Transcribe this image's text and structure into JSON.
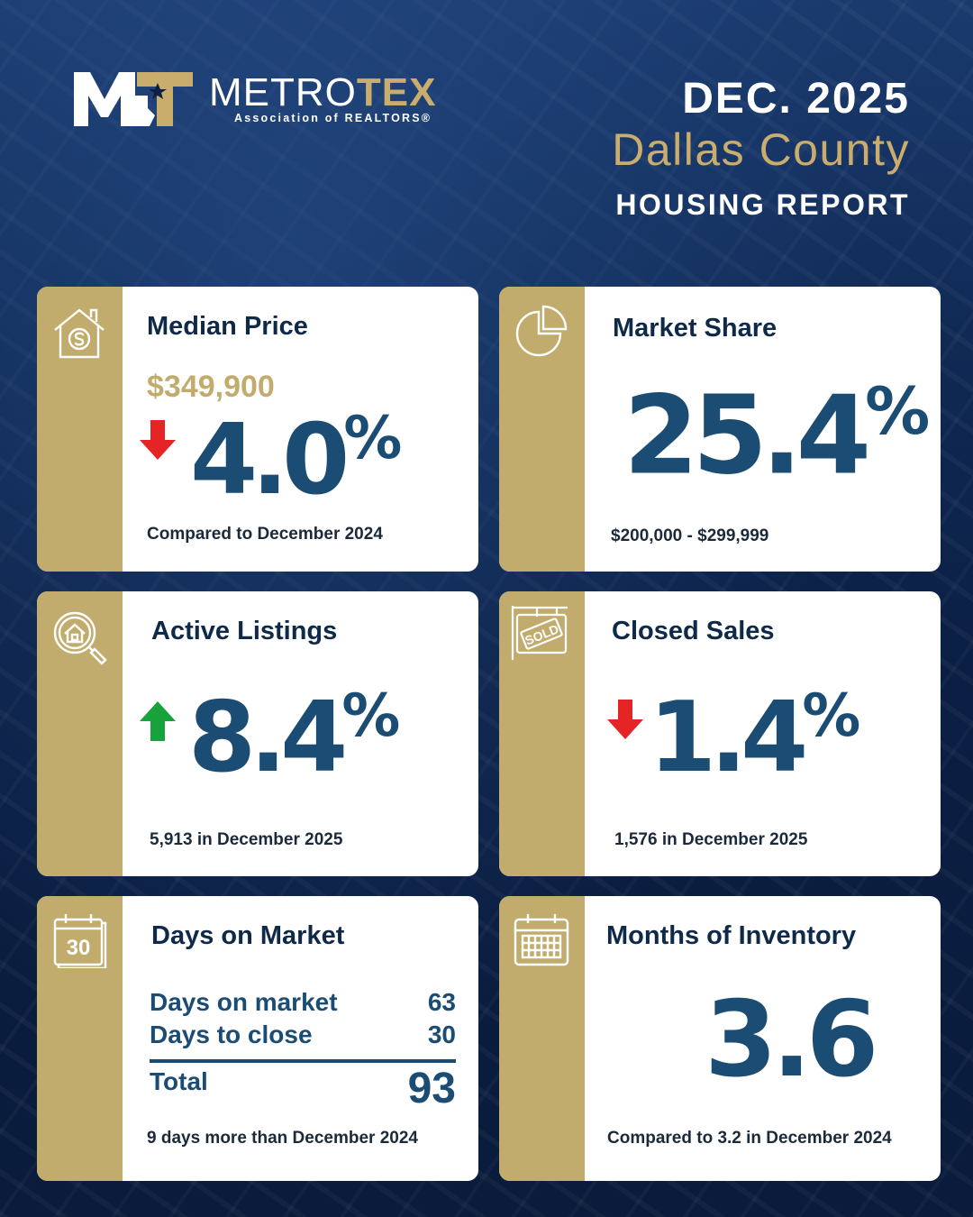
{
  "header": {
    "logo_word_a": "METRO",
    "logo_word_b": "TEX",
    "logo_sub": "Association of REALTORS®",
    "date": "DEC. 2025",
    "county": "Dallas County",
    "report": "HOUSING REPORT"
  },
  "colors": {
    "navy": "#0d2144",
    "gold": "#c2ac6d",
    "value_blue": "#1b4c73",
    "down_red": "#e52426",
    "up_green": "#18a23b"
  },
  "cards": {
    "median_price": {
      "icon": "house-dollar-icon",
      "title": "Median Price",
      "price": "$349,900",
      "direction": "down",
      "value": "4.0",
      "unit": "%",
      "note": "Compared to December 2024"
    },
    "market_share": {
      "icon": "pie-chart-icon",
      "title": "Market Share",
      "value": "25.4",
      "unit": "%",
      "note": "$200,000 - $299,999"
    },
    "active_listings": {
      "icon": "house-search-icon",
      "title": "Active Listings",
      "direction": "up",
      "value": "8.4",
      "unit": "%",
      "note": "5,913 in December 2025"
    },
    "closed_sales": {
      "icon": "sold-sign-icon",
      "title": "Closed Sales",
      "direction": "down",
      "value": "1.4",
      "unit": "%",
      "note": "1,576 in December 2025",
      "sign_text": "SOLD"
    },
    "days_on_market": {
      "icon": "calendar-30-icon",
      "title": "Days on Market",
      "calendar_number": "30",
      "rows": [
        {
          "label": "Days on market",
          "value": "63"
        },
        {
          "label": "Days to close",
          "value": "30"
        }
      ],
      "total_label": "Total",
      "total_value": "93",
      "note": "9 days more than December 2024"
    },
    "months_inventory": {
      "icon": "calendar-grid-icon",
      "title": "Months of Inventory",
      "value": "3.6",
      "note": "Compared to 3.2 in December 2024"
    }
  }
}
